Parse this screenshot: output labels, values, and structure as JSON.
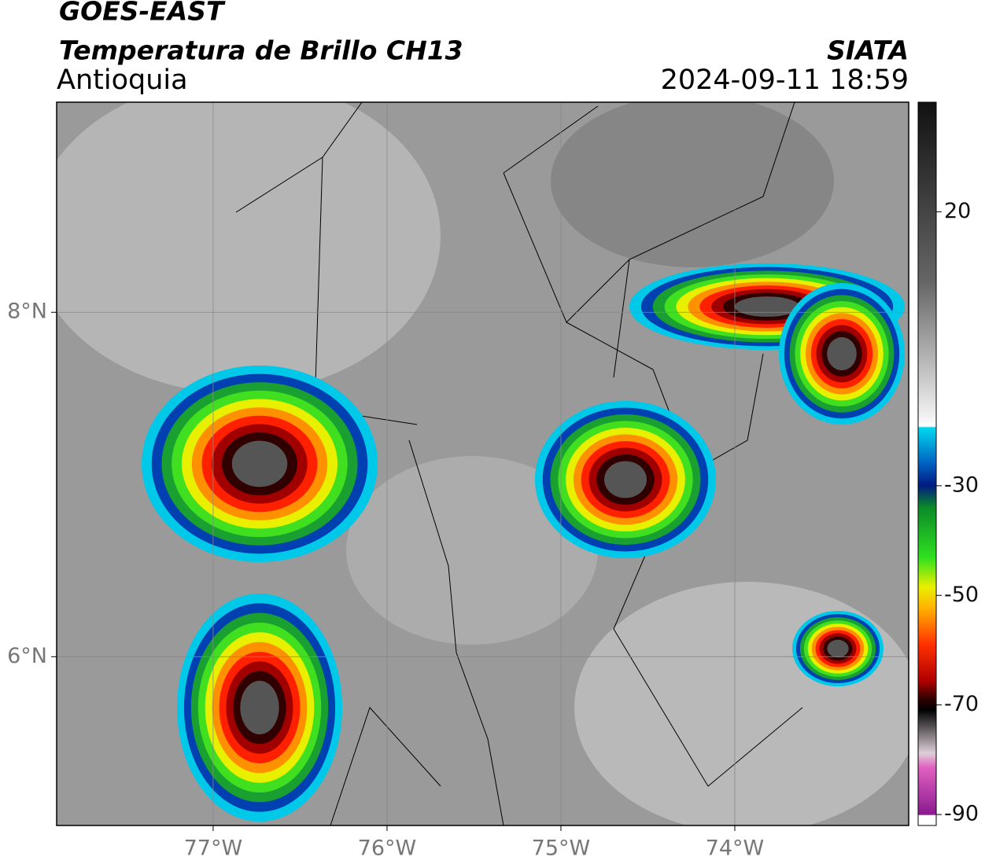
{
  "header": {
    "title": "GOES-EAST",
    "subtitle": "Temperatura de Brillo CH13",
    "region": "Antioquia",
    "source": "SIATA",
    "datetime": "2024-09-11 18:59"
  },
  "map": {
    "xlim": [
      -77.9,
      -73
    ],
    "ylim": [
      5.02,
      9.22
    ],
    "xticks": [
      {
        "value": -77,
        "label": "77°W"
      },
      {
        "value": -76,
        "label": "76°W"
      },
      {
        "value": -75,
        "label": "75°W"
      },
      {
        "value": -74,
        "label": "74°W"
      }
    ],
    "yticks": [
      {
        "value": 8,
        "label": "8°N"
      },
      {
        "value": 6,
        "label": "6°N"
      }
    ],
    "grid": true
  },
  "colorbar": {
    "lim": [
      -92,
      40
    ],
    "ticks": [
      20,
      -30,
      -50,
      -70,
      -90
    ]
  }
}
